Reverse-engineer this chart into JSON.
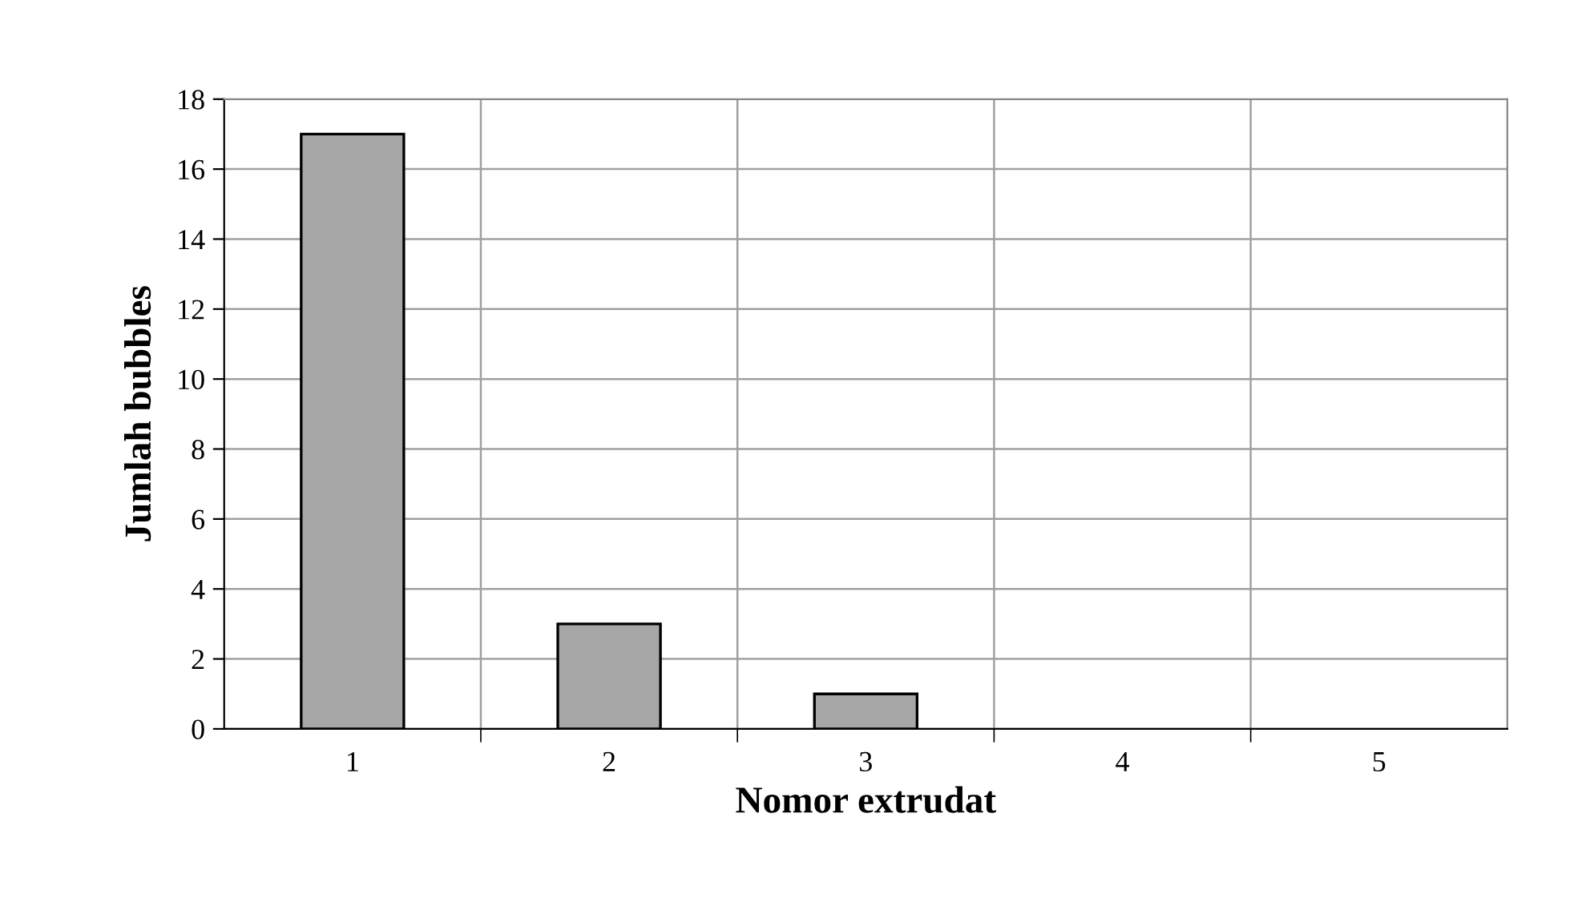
{
  "chart_data": {
    "type": "bar",
    "xlabel": "Nomor extrudat",
    "ylabel": "Jumlah bubbles",
    "categories": [
      "1",
      "2",
      "3",
      "4",
      "5"
    ],
    "values": [
      17,
      3,
      1,
      0,
      0
    ],
    "color": "#a6a6a6",
    "ylim": [
      0,
      18
    ],
    "yticks": [
      0,
      2,
      4,
      6,
      8,
      10,
      12,
      14,
      16,
      18
    ],
    "grid": true
  }
}
